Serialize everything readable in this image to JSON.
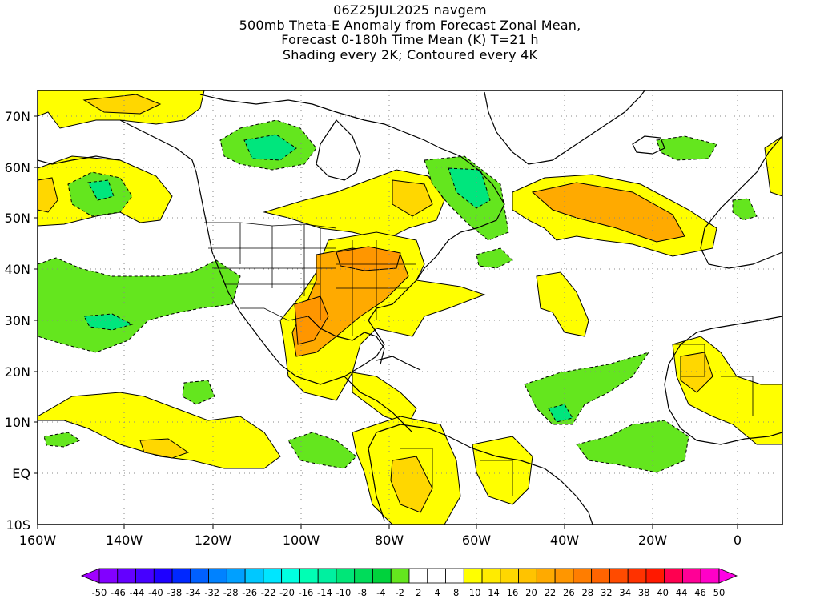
{
  "title": {
    "line1": "06Z25JUL2025 navgem",
    "line2": "500mb Theta-E Anomaly from Forecast Zonal Mean,",
    "line3": "Forecast 0-180h Time Mean (K) T=21 h",
    "line4": "Shading every 2K; Contoured every 4K"
  },
  "axes": {
    "lat_labels": [
      "70N",
      "60N",
      "50N",
      "40N",
      "30N",
      "20N",
      "10N",
      "EQ",
      "10S"
    ],
    "lon_labels": [
      "160W",
      "140W",
      "120W",
      "100W",
      "80W",
      "60W",
      "40W",
      "20W",
      "0"
    ]
  },
  "colorbar": {
    "labels": [
      "-50",
      "-46",
      "-44",
      "-40",
      "-38",
      "-34",
      "-32",
      "-28",
      "-26",
      "-22",
      "-20",
      "-16",
      "-14",
      "-10",
      "-8",
      "-4",
      "-2",
      "2",
      "4",
      "8",
      "10",
      "14",
      "16",
      "20",
      "22",
      "26",
      "28",
      "32",
      "34",
      "38",
      "40",
      "44",
      "46",
      "50"
    ],
    "colors": [
      "#a000ff",
      "#8200ff",
      "#6400ff",
      "#4600ff",
      "#1e00ff",
      "#0028ff",
      "#0060ff",
      "#0082ff",
      "#00a0ff",
      "#00c8ff",
      "#00e6ff",
      "#00ffe1",
      "#00ffb4",
      "#00f0a0",
      "#00e678",
      "#00dc5a",
      "#00d23c",
      "#64e61e",
      "#ffffff",
      "#ffffff",
      "#ffffff",
      "#ffff00",
      "#ffeb00",
      "#ffd700",
      "#ffc300",
      "#ffaa00",
      "#ff9600",
      "#ff7d00",
      "#ff6400",
      "#ff4b00",
      "#ff3200",
      "#ff1900",
      "#ff0050",
      "#ff0096",
      "#ff00c8",
      "#ff00e6"
    ]
  },
  "palette": {
    "neg_light": "#64e61e",
    "neg_mid": "#00e67d",
    "neg_dark": "#00d28c",
    "pos_light": "#ffff00",
    "pos_mid": "#ffd700",
    "pos_dark": "#ffaa00",
    "pos_darker": "#ff9600"
  }
}
